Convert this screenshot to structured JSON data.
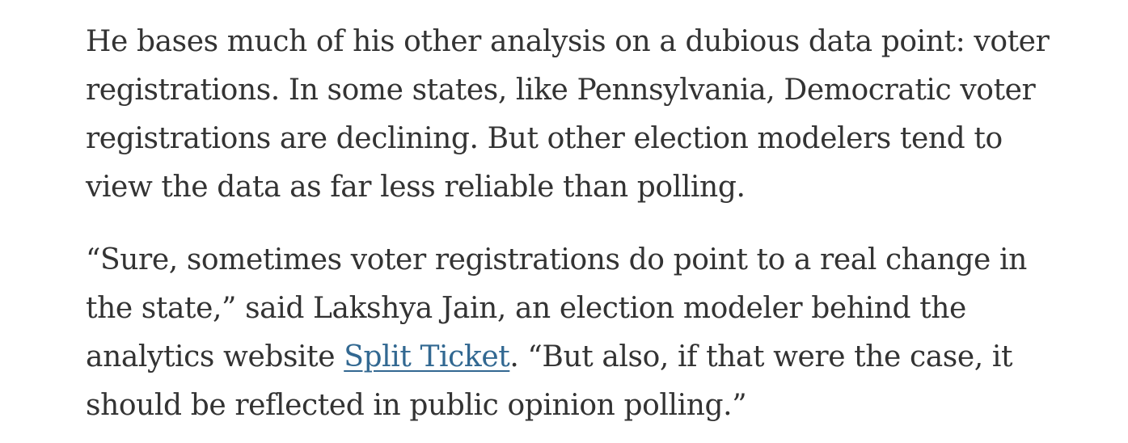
{
  "article": {
    "paragraph_1": {
      "lines": [
        "He bases much of his other analysis on a dubious data point: voter",
        "registrations. In some states, like Pennsylvania, Democratic voter",
        "registrations are declining. But other election modelers tend to",
        "view the data as far less reliable than polling."
      ]
    },
    "paragraph_2": {
      "line_1": "“Sure, sometimes voter registrations do point to a real change in",
      "line_2": "the state,” said Lakshya Jain, an election modeler behind the",
      "line_3_before_link": "analytics website ",
      "link_text": "Split Ticket",
      "line_3_after_link": ". “But also, if that were the case, it",
      "line_4": "should be reflected in public opinion polling.”"
    }
  },
  "colors": {
    "text": "#333333",
    "link": "#326891",
    "background": "#ffffff"
  }
}
